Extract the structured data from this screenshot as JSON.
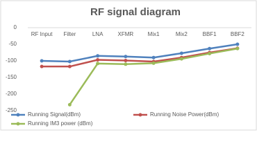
{
  "chart_data": {
    "type": "line",
    "title": "RF signal diagram",
    "categories": [
      "RF Input",
      "Filter",
      "LNA",
      "XFMR",
      "Mix1",
      "Mix2",
      "BBF1",
      "BBF2"
    ],
    "series": [
      {
        "name": "Running Signal(dBm)",
        "color": "#4f81bd",
        "values": [
          -100,
          -102,
          -85,
          -87,
          -90,
          -77,
          -63,
          -50
        ]
      },
      {
        "name": "Running Noise Power(dBm)",
        "color": "#c0504d",
        "values": [
          -117,
          -117,
          -97,
          -99,
          -102,
          -90,
          -75,
          -62
        ]
      },
      {
        "name": "Running IM3 power (dBm)",
        "color": "#9bbb59",
        "values": [
          null,
          -232,
          -108,
          -110,
          -107,
          -94,
          -78,
          -63
        ]
      }
    ],
    "ylim": [
      -250,
      0
    ],
    "yticks": [
      -250,
      -200,
      -150,
      -100,
      -50,
      0
    ],
    "grid": false
  }
}
